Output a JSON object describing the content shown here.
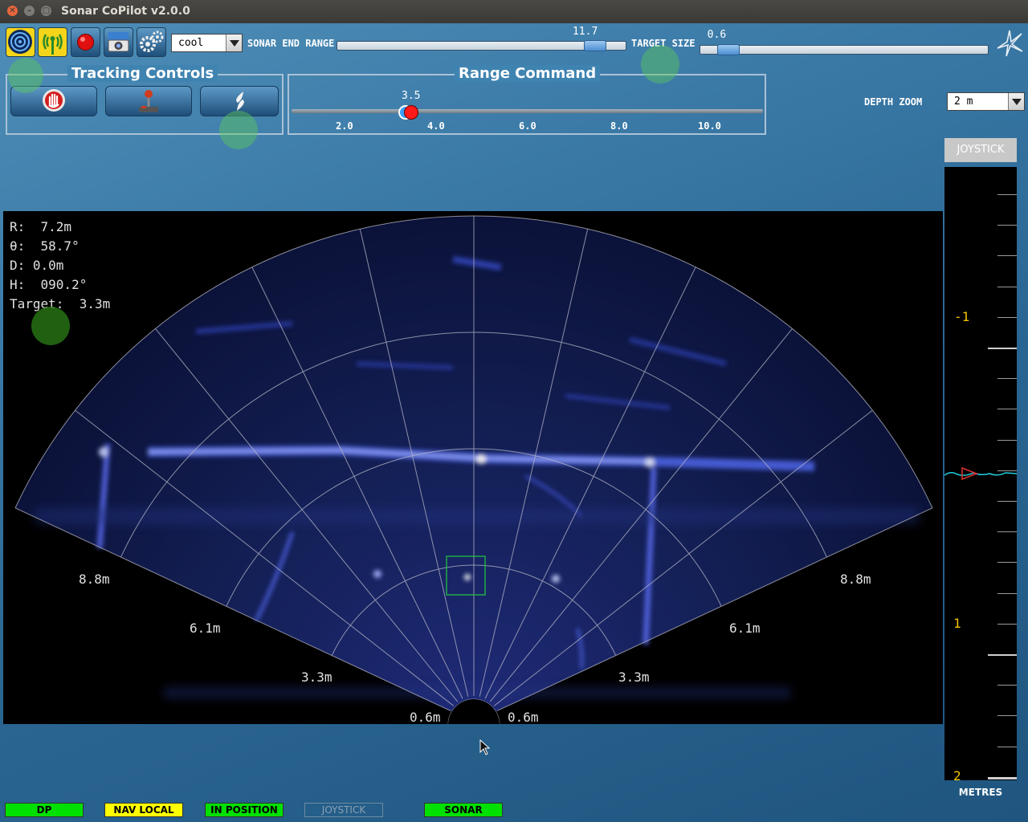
{
  "window": {
    "title": "Sonar CoPilot v2.0.0"
  },
  "toolbar": {
    "buttons": [
      {
        "name": "sonar-view-icon"
      },
      {
        "name": "antenna-icon"
      },
      {
        "name": "record-icon"
      },
      {
        "name": "camera-icon"
      },
      {
        "name": "gears-icon"
      }
    ],
    "palette": {
      "selected": "cool"
    },
    "sonar_end_range": {
      "label": "SONAR END RANGE",
      "value": "11.7",
      "fraction": 0.93
    },
    "target_size": {
      "label": "TARGET SIZE",
      "value": "0.6",
      "fraction": 0.06
    }
  },
  "tracking_controls": {
    "title": "Tracking Controls",
    "buttons": [
      {
        "name": "stop-hand-icon"
      },
      {
        "name": "joystick-icon"
      },
      {
        "name": "propeller-icon"
      }
    ]
  },
  "range_command": {
    "title": "Range Command",
    "value": "3.5",
    "ticks": [
      "2.0",
      "4.0",
      "6.0",
      "8.0",
      "10.0"
    ]
  },
  "depth_zoom": {
    "label": "DEPTH ZOOM",
    "selected": "2 m"
  },
  "sonar_view": {
    "readout": {
      "r": "R:  7.2m",
      "theta": "θ:  58.7°",
      "d": "D: 0.0m",
      "h": "H:  090.2°",
      "target": "Target:  3.3m"
    },
    "range_labels": {
      "ring1_left": "0.6m",
      "ring1_right": "0.6m",
      "ring2_left": "3.3m",
      "ring2_right": "3.3m",
      "ring3_left": "6.1m",
      "ring3_right": "6.1m",
      "ring4_left": "8.8m",
      "ring4_right": "8.8m"
    }
  },
  "depth_panel": {
    "joystick_label": "JOYSTICK",
    "labels": {
      "minus1": "-1",
      "plus1": "1",
      "plus2": "2"
    },
    "units": "METRES"
  },
  "status_bar": {
    "dp": "DP",
    "nav_local": "NAV LOCAL",
    "in_position": "IN POSITION",
    "joystick": "JOYSTICK",
    "sonar": "SONAR"
  },
  "colors": {
    "status_green": "#00e000",
    "status_yellow": "#ffff00",
    "depth_label": "#f2c200",
    "sonar_blue": "#3f55c8"
  }
}
